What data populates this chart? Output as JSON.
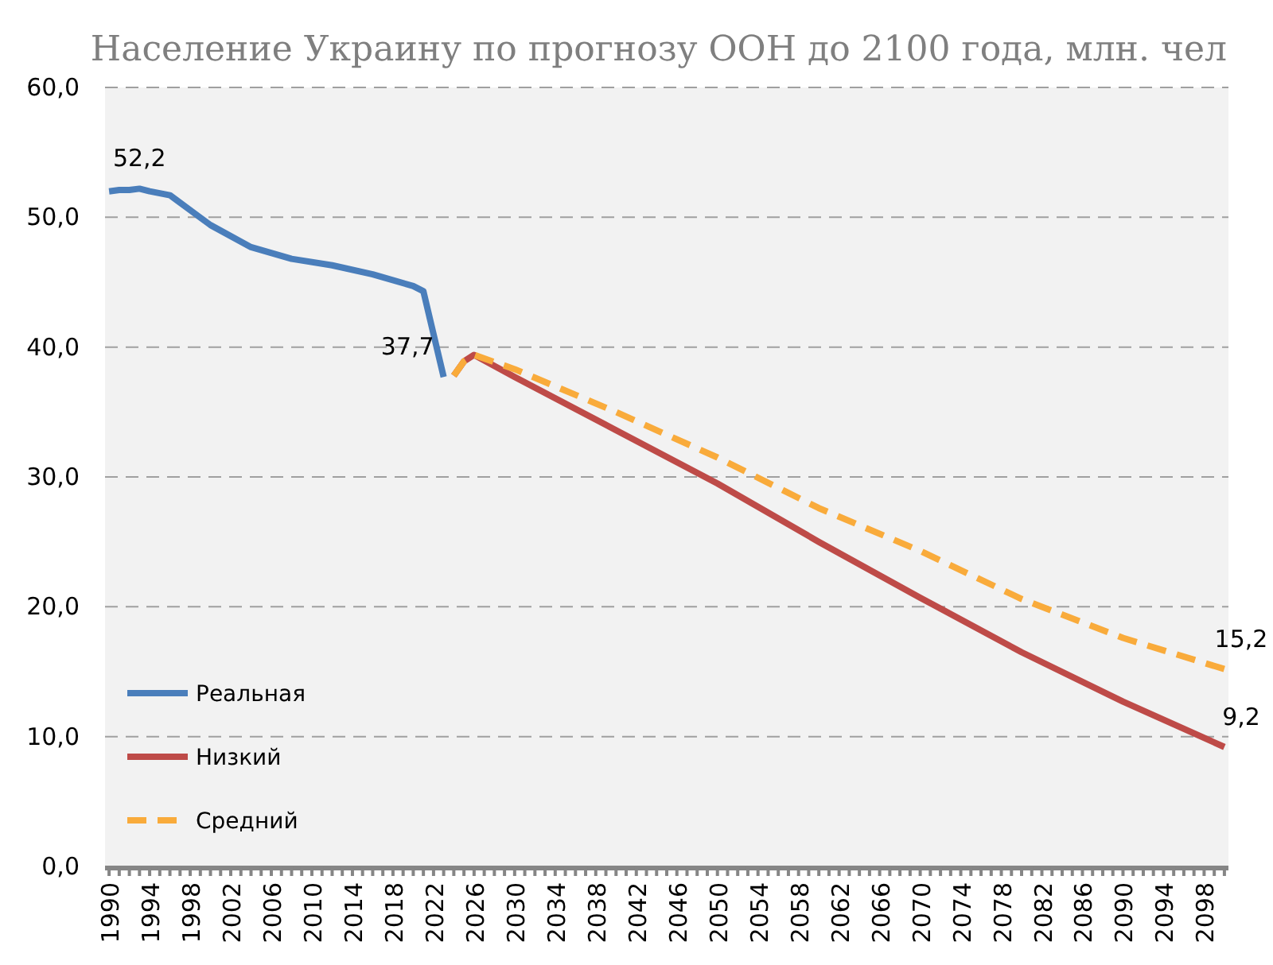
{
  "chart_data": {
    "type": "line",
    "title": "Население Украину по прогнозу ООН до 2100 года, млн. чел",
    "xlim": [
      1989.6,
      2100.4
    ],
    "xticks": [
      {
        "value": 1990,
        "label": "1990"
      },
      {
        "value": 1991,
        "label": null
      },
      {
        "value": 1992,
        "label": null
      },
      {
        "value": 1993,
        "label": null
      },
      {
        "value": 1994,
        "label": "1994"
      },
      {
        "value": 1995,
        "label": null
      },
      {
        "value": 1996,
        "label": null
      },
      {
        "value": 1997,
        "label": null
      },
      {
        "value": 1998,
        "label": "1998"
      },
      {
        "value": 1999,
        "label": null
      },
      {
        "value": 2000,
        "label": null
      },
      {
        "value": 2001,
        "label": null
      },
      {
        "value": 2002,
        "label": "2002"
      },
      {
        "value": 2003,
        "label": null
      },
      {
        "value": 2004,
        "label": null
      },
      {
        "value": 2005,
        "label": null
      },
      {
        "value": 2006,
        "label": "2006"
      },
      {
        "value": 2007,
        "label": null
      },
      {
        "value": 2008,
        "label": null
      },
      {
        "value": 2009,
        "label": null
      },
      {
        "value": 2010,
        "label": "2010"
      },
      {
        "value": 2011,
        "label": null
      },
      {
        "value": 2012,
        "label": null
      },
      {
        "value": 2013,
        "label": null
      },
      {
        "value": 2014,
        "label": "2014"
      },
      {
        "value": 2015,
        "label": null
      },
      {
        "value": 2016,
        "label": null
      },
      {
        "value": 2017,
        "label": null
      },
      {
        "value": 2018,
        "label": "2018"
      },
      {
        "value": 2019,
        "label": null
      },
      {
        "value": 2020,
        "label": null
      },
      {
        "value": 2021,
        "label": null
      },
      {
        "value": 2022,
        "label": "2022"
      },
      {
        "value": 2023,
        "label": null
      },
      {
        "value": 2024,
        "label": null
      },
      {
        "value": 2025,
        "label": null
      },
      {
        "value": 2026,
        "label": "2026"
      },
      {
        "value": 2027,
        "label": null
      },
      {
        "value": 2028,
        "label": null
      },
      {
        "value": 2029,
        "label": null
      },
      {
        "value": 2030,
        "label": "2030"
      },
      {
        "value": 2031,
        "label": null
      },
      {
        "value": 2032,
        "label": null
      },
      {
        "value": 2033,
        "label": null
      },
      {
        "value": 2034,
        "label": "2034"
      },
      {
        "value": 2035,
        "label": null
      },
      {
        "value": 2036,
        "label": null
      },
      {
        "value": 2037,
        "label": null
      },
      {
        "value": 2038,
        "label": "2038"
      },
      {
        "value": 2039,
        "label": null
      },
      {
        "value": 2040,
        "label": null
      },
      {
        "value": 2041,
        "label": null
      },
      {
        "value": 2042,
        "label": "2042"
      },
      {
        "value": 2043,
        "label": null
      },
      {
        "value": 2044,
        "label": null
      },
      {
        "value": 2045,
        "label": null
      },
      {
        "value": 2046,
        "label": "2046"
      },
      {
        "value": 2047,
        "label": null
      },
      {
        "value": 2048,
        "label": null
      },
      {
        "value": 2049,
        "label": null
      },
      {
        "value": 2050,
        "label": "2050"
      },
      {
        "value": 2051,
        "label": null
      },
      {
        "value": 2052,
        "label": null
      },
      {
        "value": 2053,
        "label": null
      },
      {
        "value": 2054,
        "label": "2054"
      },
      {
        "value": 2055,
        "label": null
      },
      {
        "value": 2056,
        "label": null
      },
      {
        "value": 2057,
        "label": null
      },
      {
        "value": 2058,
        "label": "2058"
      },
      {
        "value": 2059,
        "label": null
      },
      {
        "value": 2060,
        "label": null
      },
      {
        "value": 2061,
        "label": null
      },
      {
        "value": 2062,
        "label": "2062"
      },
      {
        "value": 2063,
        "label": null
      },
      {
        "value": 2064,
        "label": null
      },
      {
        "value": 2065,
        "label": null
      },
      {
        "value": 2066,
        "label": "2066"
      },
      {
        "value": 2067,
        "label": null
      },
      {
        "value": 2068,
        "label": null
      },
      {
        "value": 2069,
        "label": null
      },
      {
        "value": 2070,
        "label": "2070"
      },
      {
        "value": 2071,
        "label": null
      },
      {
        "value": 2072,
        "label": null
      },
      {
        "value": 2073,
        "label": null
      },
      {
        "value": 2074,
        "label": "2074"
      },
      {
        "value": 2075,
        "label": null
      },
      {
        "value": 2076,
        "label": null
      },
      {
        "value": 2077,
        "label": null
      },
      {
        "value": 2078,
        "label": "2078"
      },
      {
        "value": 2079,
        "label": null
      },
      {
        "value": 2080,
        "label": null
      },
      {
        "value": 2081,
        "label": null
      },
      {
        "value": 2082,
        "label": "2082"
      },
      {
        "value": 2083,
        "label": null
      },
      {
        "value": 2084,
        "label": null
      },
      {
        "value": 2085,
        "label": null
      },
      {
        "value": 2086,
        "label": "2086"
      },
      {
        "value": 2087,
        "label": null
      },
      {
        "value": 2088,
        "label": null
      },
      {
        "value": 2089,
        "label": null
      },
      {
        "value": 2090,
        "label": "2090"
      },
      {
        "value": 2091,
        "label": null
      },
      {
        "value": 2092,
        "label": null
      },
      {
        "value": 2093,
        "label": null
      },
      {
        "value": 2094,
        "label": "2094"
      },
      {
        "value": 2095,
        "label": null
      },
      {
        "value": 2096,
        "label": null
      },
      {
        "value": 2097,
        "label": null
      },
      {
        "value": 2098,
        "label": "2098"
      },
      {
        "value": 2099,
        "label": null
      },
      {
        "value": 2100,
        "label": null
      }
    ],
    "ylim": [
      0,
      60
    ],
    "yticks": [
      {
        "value": 0,
        "label": "0,0"
      },
      {
        "value": 10,
        "label": "10,0"
      },
      {
        "value": 20,
        "label": "20,0"
      },
      {
        "value": 30,
        "label": "30,0"
      },
      {
        "value": 40,
        "label": "40,0"
      },
      {
        "value": 50,
        "label": "50,0"
      },
      {
        "value": 60,
        "label": "60,0"
      }
    ],
    "grid": "y",
    "legend": "bottom left",
    "series": [
      {
        "name": "Реальная",
        "color": "#4a7ebb",
        "line_style": "solid",
        "x": [
          1990,
          1991,
          1992,
          1993,
          1994,
          1996,
          2000,
          2004,
          2008,
          2012,
          2016,
          2020,
          2021,
          2022,
          2023
        ],
        "values": [
          52.0,
          52.1,
          52.1,
          52.2,
          52.0,
          51.7,
          49.4,
          47.7,
          46.8,
          46.3,
          45.6,
          44.7,
          44.3,
          41.0,
          37.7
        ],
        "value_labels": [
          null,
          null,
          null,
          "52,2",
          null,
          null,
          null,
          null,
          null,
          null,
          null,
          null,
          null,
          null,
          "37,7"
        ]
      },
      {
        "name": "Низкий",
        "color": "#be4b48",
        "line_style": "solid",
        "x": [
          2024,
          2025,
          2026,
          2030,
          2040,
          2050,
          2060,
          2070,
          2080,
          2090,
          2100
        ],
        "values": [
          37.8,
          38.9,
          39.4,
          37.7,
          33.6,
          29.5,
          25.0,
          20.7,
          16.5,
          12.7,
          9.2
        ],
        "value_labels": [
          null,
          null,
          null,
          null,
          null,
          null,
          null,
          null,
          null,
          null,
          "9,2"
        ]
      },
      {
        "name": "Средний",
        "color": "#f9ab3b",
        "line_style": "dashed",
        "x": [
          2024,
          2025,
          2026,
          2030,
          2040,
          2050,
          2060,
          2070,
          2080,
          2090,
          2100
        ],
        "values": [
          37.8,
          38.9,
          39.4,
          38.3,
          35.0,
          31.5,
          27.6,
          24.3,
          20.6,
          17.6,
          15.2
        ],
        "value_labels": [
          null,
          null,
          null,
          null,
          null,
          null,
          null,
          null,
          null,
          null,
          "15,2"
        ]
      }
    ]
  }
}
